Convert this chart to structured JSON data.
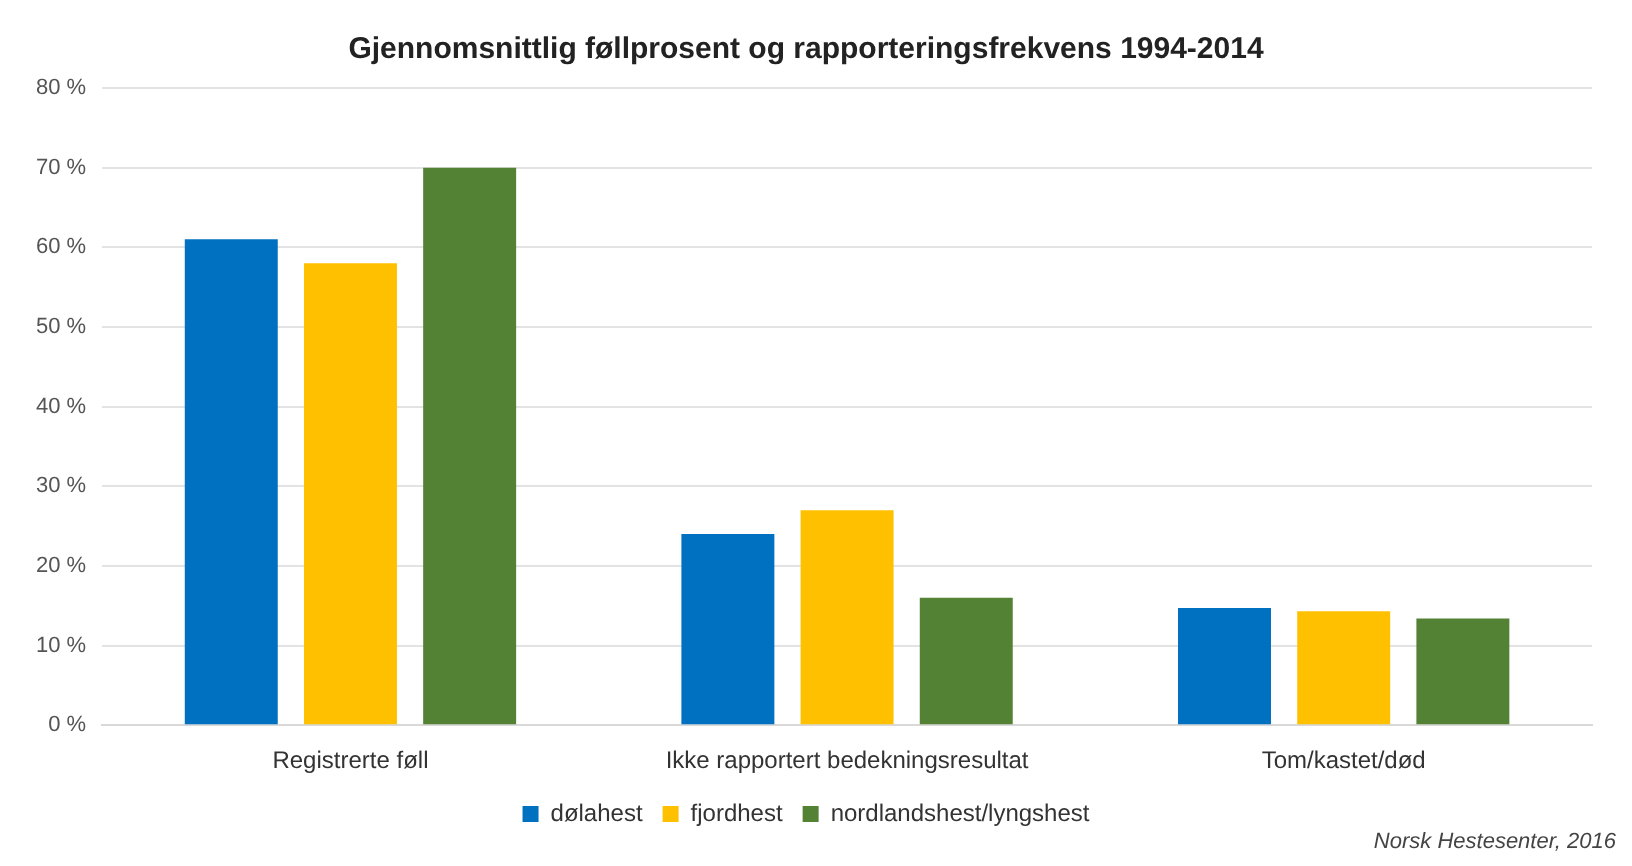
{
  "chart_data": {
    "type": "bar",
    "title": "Gjennomsnittlig føllprosent og rapporteringsfrekvens 1994-2014",
    "categories": [
      "Registrerte føll",
      "Ikke rapportert bedekningsresultat",
      "Tom/kastet/død"
    ],
    "series": [
      {
        "name": "dølahest",
        "color": "#0070c0",
        "values": [
          61,
          24,
          14.7
        ]
      },
      {
        "name": "fjordhest",
        "color": "#ffc000",
        "values": [
          58,
          27,
          14.3
        ]
      },
      {
        "name": "nordlandshest/lyngshest",
        "color": "#548235",
        "values": [
          70,
          16,
          13.4
        ]
      }
    ],
    "ylim": [
      0,
      80
    ],
    "yticks": [
      {
        "value": 0,
        "label": "0 %"
      },
      {
        "value": 10,
        "label": "10 %"
      },
      {
        "value": 20,
        "label": "20 %"
      },
      {
        "value": 30,
        "label": "30 %"
      },
      {
        "value": 40,
        "label": "40 %"
      },
      {
        "value": 50,
        "label": "50 %"
      },
      {
        "value": 60,
        "label": "60 %"
      },
      {
        "value": 70,
        "label": "70 %"
      },
      {
        "value": 80,
        "label": "80 %"
      }
    ],
    "grid": "y",
    "legend": "bottom",
    "annotations": [
      "Norsk Hestesenter, 2016"
    ]
  }
}
